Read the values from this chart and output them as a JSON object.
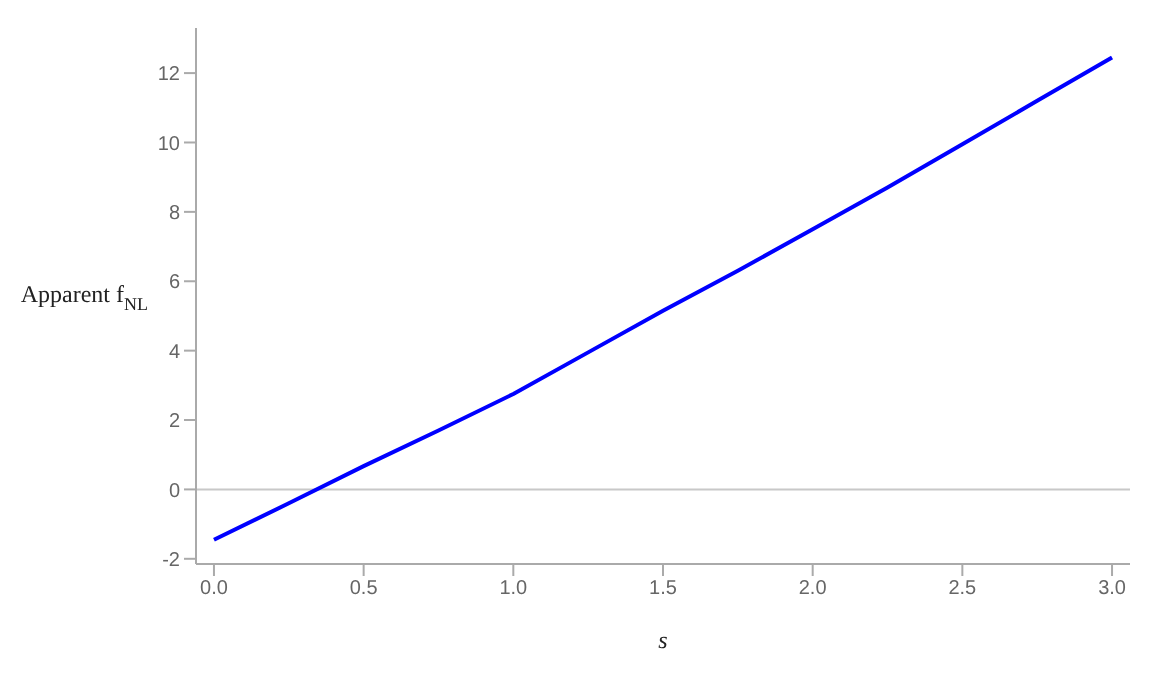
{
  "chart_data": {
    "type": "line",
    "xlabel": "s",
    "ylabel": "Apparent f$_{NL}$",
    "x": [
      0,
      0.25,
      0.5,
      0.75,
      1.0,
      1.25,
      1.5,
      1.75,
      2.0,
      2.25,
      2.5,
      2.75,
      3.0
    ],
    "series": [
      {
        "color": "#0000ff",
        "values": [
          -1.45,
          -0.4,
          0.67,
          1.7,
          2.75,
          3.95,
          5.15,
          6.3,
          7.5,
          8.7,
          9.95,
          11.2,
          12.45
        ]
      }
    ],
    "xlim": [
      -0.06,
      3.06
    ],
    "xticks": [
      {
        "value": 0,
        "label": "0.0"
      },
      0.5,
      {
        "value": 1,
        "label": "1.0"
      },
      1.5,
      {
        "value": 2,
        "label": "2.0"
      },
      2.5,
      {
        "value": 3,
        "label": "3.0"
      }
    ],
    "ylim": [
      -2.15,
      13.3
    ],
    "yticks": [
      -2,
      0,
      2,
      4,
      6,
      8,
      10,
      12
    ],
    "ref_lines": [
      {
        "axis": "y",
        "value": 0,
        "color": "#c8c8c8"
      }
    ],
    "grid": false,
    "marker": "none",
    "line_style": "solid"
  }
}
